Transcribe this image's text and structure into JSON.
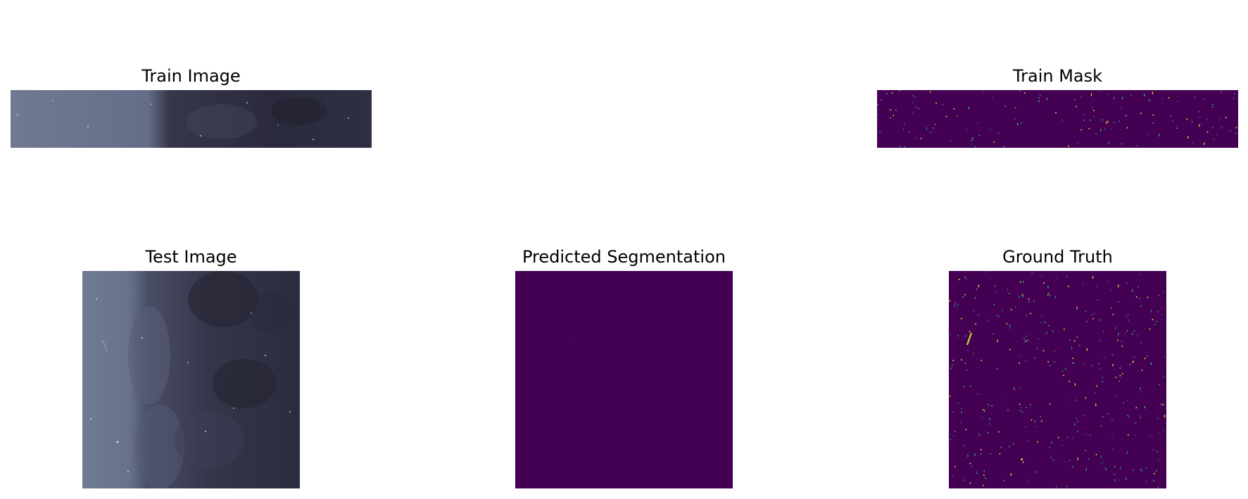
{
  "figure": {
    "panels": [
      {
        "id": "train-image",
        "title": "Train Image",
        "kind": "photo",
        "aspect": "wide-strip"
      },
      {
        "id": "train-mask",
        "title": "Train Mask",
        "kind": "mask",
        "colormap": "viridis"
      },
      {
        "id": "test-image",
        "title": "Test Image",
        "kind": "photo",
        "aspect": "square"
      },
      {
        "id": "predicted-segmentation",
        "title": "Predicted Segmentation",
        "kind": "mask",
        "colormap": "viridis"
      },
      {
        "id": "ground-truth",
        "title": "Ground Truth",
        "kind": "mask",
        "colormap": "viridis"
      }
    ]
  },
  "colors": {
    "background": "#ffffff",
    "mask_background": "#440154",
    "mask_spot_light": "#fde725",
    "mask_spot_mid": "#21918c",
    "mask_spot_teal": "#35b779",
    "photo_light": "#6d7790",
    "photo_dark": "#272839"
  }
}
